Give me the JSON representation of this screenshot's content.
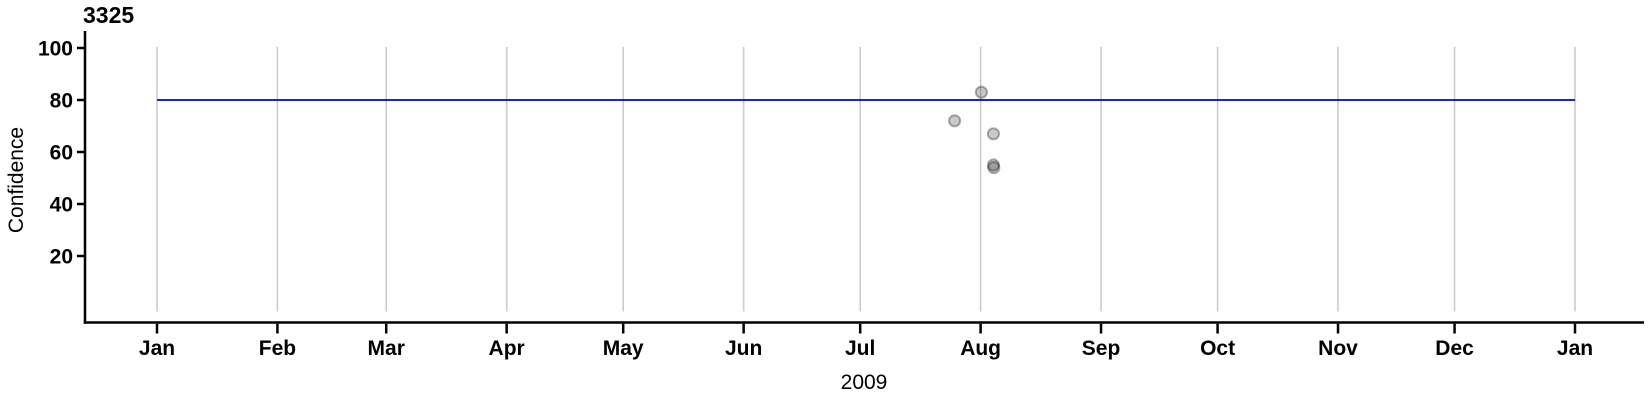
{
  "chart_data": {
    "type": "scatter",
    "title": "3325",
    "xlabel": "2009",
    "ylabel": "Confidence",
    "x_axis": {
      "kind": "time",
      "year_label": "2009",
      "tick_labels": [
        "Jan",
        "Feb",
        "Mar",
        "Apr",
        "May",
        "Jun",
        "Jul",
        "Aug",
        "Sep",
        "Oct",
        "Nov",
        "Dec",
        "Jan"
      ],
      "tick_day_of_year": [
        0,
        31,
        59,
        90,
        120,
        151,
        181,
        212,
        243,
        273,
        304,
        334,
        365
      ],
      "range_days": [
        0,
        365
      ],
      "gridlines": "vertical line at every month tick"
    },
    "y_axis": {
      "ticks": [
        20,
        40,
        60,
        80,
        100
      ],
      "range": [
        0,
        110
      ],
      "gridlines": "none"
    },
    "reference_line": {
      "value": 80,
      "span_days": [
        0,
        365
      ],
      "color": "#0000d0"
    },
    "points": [
      {
        "date": "Jul 24",
        "day_of_year": 205.3,
        "confidence": 72
      },
      {
        "date": "Aug 1",
        "day_of_year": 212.2,
        "confidence": 83
      },
      {
        "date": "Aug 4",
        "day_of_year": 215.3,
        "confidence": 67
      },
      {
        "date": "Aug 4",
        "day_of_year": 215.3,
        "confidence": 55
      },
      {
        "date": "Aug 4",
        "day_of_year": 215.4,
        "confidence": 54
      }
    ],
    "style": {
      "point_fill": "rgba(0,0,0,0.21)",
      "point_stroke": "rgba(0,0,0,0.30)",
      "grid_color": "#cccccc",
      "axis_color": "#000000",
      "reference_color": "#0000d0",
      "background": "#ffffff"
    },
    "legend": "none"
  }
}
